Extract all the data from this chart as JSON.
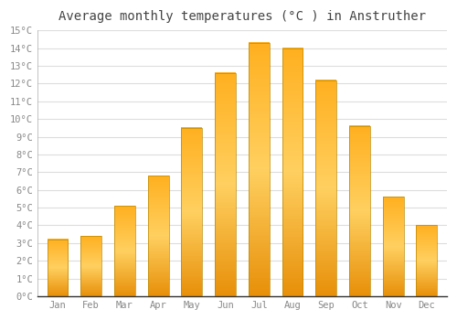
{
  "title": "Average monthly temperatures (°C ) in Anstruther",
  "months": [
    "Jan",
    "Feb",
    "Mar",
    "Apr",
    "May",
    "Jun",
    "Jul",
    "Aug",
    "Sep",
    "Oct",
    "Nov",
    "Dec"
  ],
  "values": [
    3.2,
    3.4,
    5.1,
    6.8,
    9.5,
    12.6,
    14.3,
    14.0,
    12.2,
    9.6,
    5.6,
    4.0
  ],
  "bar_color": "#FFA500",
  "bar_edge_color": "#CC8800",
  "ylim": [
    0,
    15
  ],
  "yticks": [
    0,
    1,
    2,
    3,
    4,
    5,
    6,
    7,
    8,
    9,
    10,
    11,
    12,
    13,
    14,
    15
  ],
  "ytick_labels": [
    "0°C",
    "1°C",
    "2°C",
    "3°C",
    "4°C",
    "5°C",
    "6°C",
    "7°C",
    "8°C",
    "9°C",
    "10°C",
    "11°C",
    "12°C",
    "13°C",
    "14°C",
    "15°C"
  ],
  "background_color": "#FFFFFF",
  "grid_color": "#DDDDDD",
  "title_fontsize": 10,
  "tick_fontsize": 7.5,
  "font_family": "monospace",
  "tick_color": "#888888",
  "spine_color": "#AAAAAA"
}
